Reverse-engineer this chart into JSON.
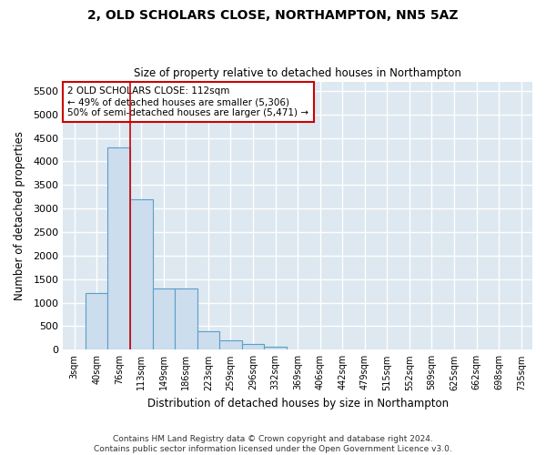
{
  "title_line1": "2, OLD SCHOLARS CLOSE, NORTHAMPTON, NN5 5AZ",
  "title_line2": "Size of property relative to detached houses in Northampton",
  "xlabel": "Distribution of detached houses by size in Northampton",
  "ylabel": "Number of detached properties",
  "footnote": "Contains HM Land Registry data © Crown copyright and database right 2024.\nContains public sector information licensed under the Open Government Licence v3.0.",
  "bar_color": "#ccdded",
  "bar_edge_color": "#5b9ec9",
  "background_color": "#dde8f0",
  "grid_color": "#ffffff",
  "annotation_box_color": "#cc0000",
  "annotation_text": "2 OLD SCHOLARS CLOSE: 112sqm\n← 49% of detached houses are smaller (5,306)\n50% of semi-detached houses are larger (5,471) →",
  "vline_x_idx": 2.5,
  "categories": [
    "3sqm",
    "40sqm",
    "76sqm",
    "113sqm",
    "149sqm",
    "186sqm",
    "223sqm",
    "259sqm",
    "296sqm",
    "332sqm",
    "369sqm",
    "406sqm",
    "442sqm",
    "479sqm",
    "515sqm",
    "552sqm",
    "589sqm",
    "625sqm",
    "662sqm",
    "698sqm",
    "735sqm"
  ],
  "values": [
    0,
    1200,
    4300,
    3200,
    1300,
    1300,
    400,
    200,
    130,
    60,
    0,
    0,
    0,
    0,
    0,
    0,
    0,
    0,
    0,
    0,
    0
  ],
  "ylim": [
    0,
    5700
  ],
  "yticks": [
    0,
    500,
    1000,
    1500,
    2000,
    2500,
    3000,
    3500,
    4000,
    4500,
    5000,
    5500
  ]
}
